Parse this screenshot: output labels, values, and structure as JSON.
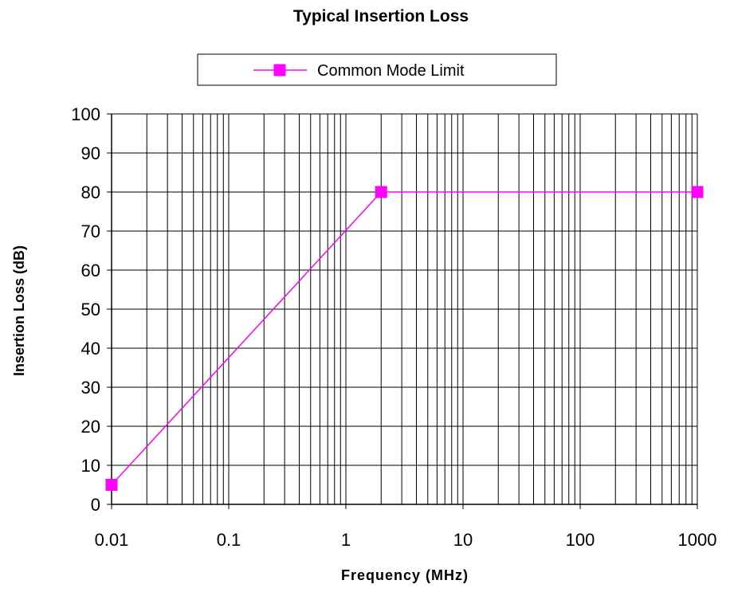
{
  "chart_data": {
    "type": "line",
    "title": "Typical Insertion Loss",
    "xlabel": "Frequency (MHz)",
    "ylabel": "Insertion Loss (dB)",
    "x_scale": "log",
    "xlim": [
      0.01,
      1000
    ],
    "ylim": [
      0,
      100
    ],
    "x_ticks": [
      "0.01",
      "0.1",
      "1",
      "10",
      "100",
      "1000"
    ],
    "y_ticks": [
      "0",
      "10",
      "20",
      "30",
      "40",
      "50",
      "60",
      "70",
      "80",
      "90",
      "100"
    ],
    "grid": true,
    "legend_position": "top-center",
    "series": [
      {
        "name": "Common Mode Limit",
        "color": "#ff00ff",
        "marker": "square",
        "x": [
          0.01,
          2,
          1000
        ],
        "y": [
          5,
          80,
          80
        ]
      }
    ]
  }
}
